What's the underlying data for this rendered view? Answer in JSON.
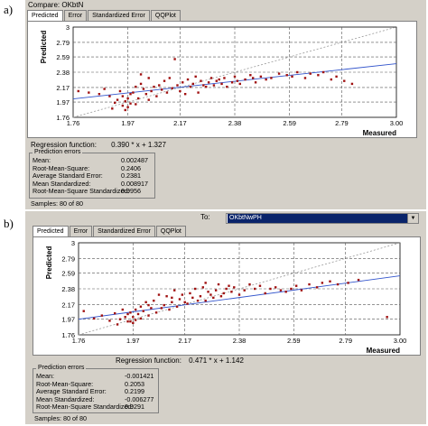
{
  "panel_a": {
    "letter": "a)",
    "compare_label": "Compare:",
    "compare_value": "OKbtN",
    "tabs": [
      "Predicted",
      "Error",
      "Standardized Error",
      "QQPlot"
    ],
    "regression_label": "Regression function:",
    "regression_value": "0.390 * x + 1.327",
    "errors_title": "Prediction errors",
    "errors": [
      {
        "label": "Mean:",
        "value": "0.002487"
      },
      {
        "label": "Root-Mean-Square:",
        "value": "0.2406"
      },
      {
        "label": "Average Standard Error:",
        "value": "0.2381"
      },
      {
        "label": "Mean Standardized:",
        "value": "0.008917"
      },
      {
        "label": "Root-Mean-Square Standardized:",
        "value": "0.9956"
      }
    ],
    "samples": "Samples: 80 of 80"
  },
  "panel_b": {
    "letter": "b)",
    "to_label": "To:",
    "to_value": "OKbtNwPH",
    "tabs": [
      "Predicted",
      "Error",
      "Standardized Error",
      "QQPlot"
    ],
    "regression_label": "Regression function:",
    "regression_value": "0.471 * x + 1.142",
    "errors_title": "Prediction errors",
    "errors": [
      {
        "label": "Mean:",
        "value": "-0.001421"
      },
      {
        "label": "Root-Mean-Square:",
        "value": "0.2053"
      },
      {
        "label": "Average Standard Error:",
        "value": "0.2199"
      },
      {
        "label": "Mean Standardized:",
        "value": "-0.006277"
      },
      {
        "label": "Root-Mean-Square Standardized:",
        "value": "0.9291"
      }
    ],
    "samples": "Samples: 80 of 80"
  },
  "chart_data": [
    {
      "type": "scatter",
      "title": "",
      "xlabel": "Measured",
      "ylabel": "Predicted",
      "xlim": [
        1.76,
        3.0
      ],
      "ylim": [
        1.76,
        3.0
      ],
      "x_ticks": [
        "1.76",
        "1.97",
        "2.17",
        "2.38",
        "2.59",
        "2.79",
        "3.00"
      ],
      "y_ticks": [
        "1.76",
        "1.97",
        "2.17",
        "2.38",
        "2.59",
        "2.79",
        "3"
      ],
      "grid": true,
      "colors": {
        "points": "#a01010",
        "regression": "#3355cc",
        "reference": "#999999"
      },
      "regression": {
        "slope": 0.39,
        "intercept": 1.327
      },
      "x": [
        1.78,
        1.82,
        1.86,
        1.88,
        1.9,
        1.92,
        1.93,
        1.94,
        1.95,
        1.95,
        1.96,
        1.97,
        1.97,
        1.98,
        1.98,
        1.99,
        2.0,
        2.0,
        2.01,
        2.02,
        2.03,
        2.04,
        2.05,
        2.05,
        2.06,
        2.07,
        2.08,
        2.09,
        2.1,
        2.11,
        2.12,
        2.13,
        2.14,
        2.15,
        2.16,
        2.17,
        2.18,
        2.19,
        2.2,
        2.21,
        2.22,
        2.23,
        2.24,
        2.25,
        2.26,
        2.27,
        2.28,
        2.29,
        2.3,
        2.31,
        2.32,
        2.33,
        2.34,
        2.35,
        2.37,
        2.38,
        2.39,
        2.4,
        2.42,
        2.44,
        2.45,
        2.46,
        2.48,
        2.5,
        2.52,
        2.55,
        2.58,
        2.6,
        2.62,
        2.65,
        2.67,
        2.7,
        2.72,
        2.75,
        2.77,
        2.8,
        2.83,
        1.91,
        1.96,
        2.02
      ],
      "y": [
        2.12,
        2.1,
        2.08,
        2.15,
        2.05,
        1.96,
        2.0,
        2.12,
        1.92,
        2.05,
        1.98,
        2.02,
        1.9,
        2.08,
        1.95,
        2.1,
        2.18,
        1.94,
        2.02,
        2.22,
        2.15,
        2.08,
        2.3,
        2.0,
        2.12,
        2.18,
        2.05,
        2.2,
        2.14,
        2.26,
        2.1,
        2.3,
        2.16,
        2.56,
        2.2,
        2.12,
        2.24,
        2.08,
        2.28,
        2.18,
        2.22,
        2.32,
        2.1,
        2.26,
        2.2,
        2.18,
        2.24,
        2.3,
        2.2,
        2.26,
        2.28,
        2.22,
        2.3,
        2.18,
        2.24,
        2.32,
        2.26,
        2.22,
        2.28,
        2.34,
        2.3,
        2.24,
        2.32,
        2.28,
        2.3,
        2.36,
        2.34,
        2.32,
        2.38,
        2.3,
        2.36,
        2.34,
        2.38,
        2.28,
        2.32,
        2.26,
        2.22,
        1.88,
        1.86,
        2.35
      ]
    },
    {
      "type": "scatter",
      "title": "",
      "xlabel": "Measured",
      "ylabel": "Predicted",
      "xlim": [
        1.76,
        3.0
      ],
      "ylim": [
        1.76,
        3.0
      ],
      "x_ticks": [
        "1.76",
        "1.97",
        "2.17",
        "2.38",
        "2.59",
        "2.79",
        "3.00"
      ],
      "y_ticks": [
        "1.76",
        "1.97",
        "2.17",
        "2.38",
        "2.59",
        "2.79",
        "3"
      ],
      "grid": true,
      "colors": {
        "points": "#a01010",
        "regression": "#3355cc",
        "reference": "#999999"
      },
      "regression": {
        "slope": 0.471,
        "intercept": 1.142
      },
      "x": [
        1.78,
        1.82,
        1.85,
        1.88,
        1.9,
        1.92,
        1.93,
        1.94,
        1.95,
        1.95,
        1.96,
        1.97,
        1.97,
        1.98,
        1.98,
        1.99,
        2.0,
        2.0,
        2.01,
        2.02,
        2.03,
        2.04,
        2.05,
        2.06,
        2.07,
        2.08,
        2.09,
        2.1,
        2.11,
        2.12,
        2.13,
        2.14,
        2.15,
        2.16,
        2.17,
        2.18,
        2.19,
        2.2,
        2.21,
        2.22,
        2.23,
        2.24,
        2.25,
        2.26,
        2.27,
        2.28,
        2.29,
        2.3,
        2.31,
        2.32,
        2.33,
        2.34,
        2.35,
        2.36,
        2.38,
        2.4,
        2.42,
        2.44,
        2.46,
        2.48,
        2.5,
        2.52,
        2.54,
        2.56,
        2.58,
        2.6,
        2.62,
        2.65,
        2.68,
        2.7,
        2.73,
        2.76,
        2.8,
        2.84,
        2.95,
        1.91,
        1.96,
        2.03,
        2.12,
        2.25
      ],
      "y": [
        2.08,
        1.98,
        2.02,
        1.95,
        2.05,
        1.97,
        2.1,
        2.0,
        2.04,
        1.94,
        2.06,
        2.0,
        1.92,
        2.1,
        1.96,
        2.04,
        2.14,
        1.98,
        2.08,
        2.2,
        2.02,
        2.12,
        2.22,
        2.06,
        2.3,
        2.12,
        2.16,
        2.28,
        2.1,
        2.2,
        2.36,
        2.14,
        2.24,
        2.3,
        2.2,
        2.18,
        2.32,
        2.26,
        2.38,
        2.22,
        2.28,
        2.4,
        2.22,
        2.34,
        2.3,
        2.26,
        2.36,
        2.44,
        2.28,
        2.32,
        2.38,
        2.42,
        2.34,
        2.4,
        2.3,
        2.36,
        2.44,
        2.38,
        2.42,
        2.32,
        2.38,
        2.4,
        2.36,
        2.34,
        2.38,
        2.42,
        2.36,
        2.44,
        2.4,
        2.46,
        2.48,
        2.44,
        2.46,
        2.5,
        2.0,
        1.9,
        1.94,
        2.16,
        2.26,
        2.46
      ]
    }
  ]
}
